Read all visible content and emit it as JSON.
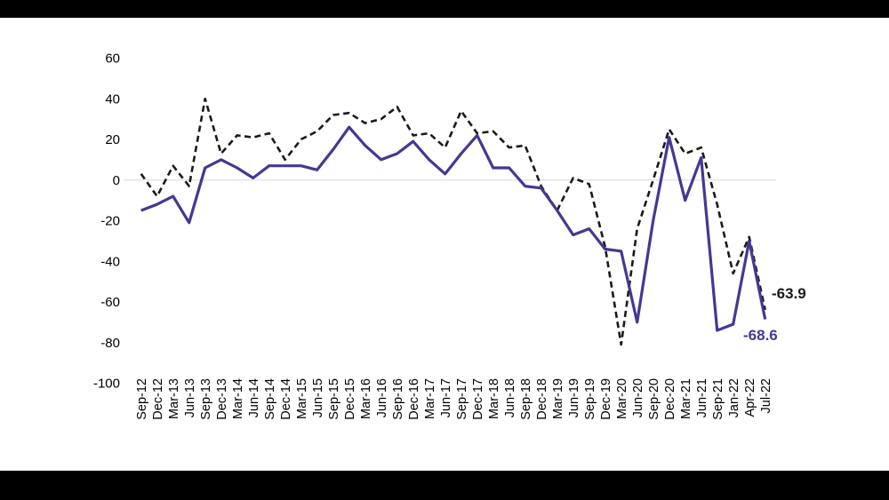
{
  "frame": {
    "background": "#ffffff",
    "letterbox_color": "#000000"
  },
  "chart_data": {
    "type": "line",
    "title": "",
    "xlabel": "",
    "ylabel": "",
    "legend": "none",
    "grid": "zero-line-only",
    "y_axis": {
      "ticks": [
        60,
        40,
        20,
        0,
        -20,
        -40,
        -60,
        -80,
        -100
      ],
      "min": -100,
      "max": 60
    },
    "categories": [
      "Sep-12",
      "Dec-12",
      "Mar-13",
      "Jun-13",
      "Sep-13",
      "Dec-13",
      "Mar-14",
      "Jun-14",
      "Sep-14",
      "Dec-14",
      "Mar-15",
      "Jun-15",
      "Sep-15",
      "Dec-15",
      "Mar-16",
      "Jun-16",
      "Sep-16",
      "Dec-16",
      "Mar-17",
      "Jun-17",
      "Sep-17",
      "Dec-17",
      "Mar-18",
      "Jun-18",
      "Sep-18",
      "Dec-18",
      "Mar-19",
      "Jun-19",
      "Sep-19",
      "Dec-19",
      "Mar-20",
      "Jun-20",
      "Sep-20",
      "Dec-20",
      "Mar-21",
      "Jun-21",
      "Sep-21",
      "Jan-22",
      "Apr-22",
      "Jul-22"
    ],
    "series": [
      {
        "name": "dashed-black-series",
        "style": "dashed",
        "color": "#1a1a1a",
        "end_label": "-63.9",
        "values": [
          3,
          -8,
          7,
          -3,
          40,
          13,
          22,
          21,
          23,
          10,
          20,
          24,
          32,
          33,
          28,
          30,
          36,
          22,
          23,
          16,
          34,
          23,
          24,
          16,
          17,
          -3,
          -15,
          1,
          -2,
          -33,
          -81,
          -24,
          0,
          25,
          13,
          16,
          -12,
          -46,
          -28,
          -63.9
        ]
      },
      {
        "name": "solid-purple-series",
        "style": "solid",
        "color": "#443893",
        "end_label": "-68.6",
        "values": [
          -15,
          -12,
          -8,
          -21,
          6,
          10,
          6,
          1,
          7,
          7,
          7,
          5,
          15,
          26,
          17,
          10,
          13,
          19,
          10,
          3,
          13,
          22,
          6,
          6,
          -3,
          -4,
          -15,
          -27,
          -24,
          -34,
          -35,
          -70,
          -20,
          21,
          -10,
          11,
          -74,
          -71,
          -30,
          -68.6
        ]
      }
    ],
    "gridline_color": "#d9d9d9",
    "tick_label_color": "#000000"
  }
}
